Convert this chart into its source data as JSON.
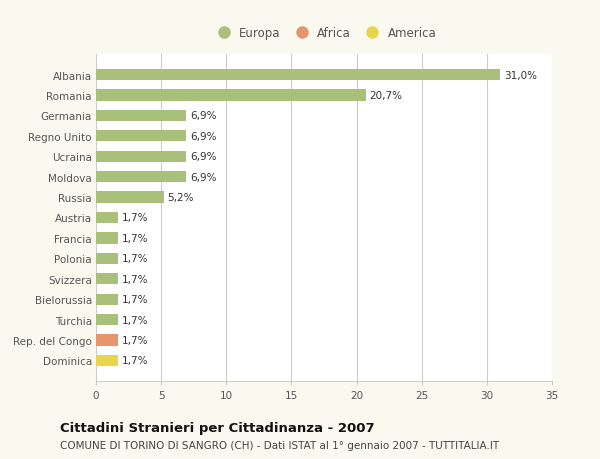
{
  "categories": [
    "Dominica",
    "Rep. del Congo",
    "Turchia",
    "Bielorussia",
    "Svizzera",
    "Polonia",
    "Francia",
    "Austria",
    "Russia",
    "Moldova",
    "Ucraina",
    "Regno Unito",
    "Germania",
    "Romania",
    "Albania"
  ],
  "values": [
    1.7,
    1.7,
    1.7,
    1.7,
    1.7,
    1.7,
    1.7,
    1.7,
    5.2,
    6.9,
    6.9,
    6.9,
    6.9,
    20.7,
    31.0
  ],
  "colors": [
    "#e8d44d",
    "#e8956d",
    "#a8c07a",
    "#a8c07a",
    "#a8c07a",
    "#a8c07a",
    "#a8c07a",
    "#a8c07a",
    "#a8c07a",
    "#a8c07a",
    "#a8c07a",
    "#a8c07a",
    "#a8c07a",
    "#a8c07a",
    "#a8c07a"
  ],
  "labels": [
    "1,7%",
    "1,7%",
    "1,7%",
    "1,7%",
    "1,7%",
    "1,7%",
    "1,7%",
    "1,7%",
    "5,2%",
    "6,9%",
    "6,9%",
    "6,9%",
    "6,9%",
    "20,7%",
    "31,0%"
  ],
  "legend_entries": [
    {
      "label": "Europa",
      "color": "#a8c07a"
    },
    {
      "label": "Africa",
      "color": "#e8956d"
    },
    {
      "label": "America",
      "color": "#e8d44d"
    }
  ],
  "xlim": [
    0,
    35
  ],
  "xticks": [
    0,
    5,
    10,
    15,
    20,
    25,
    30,
    35
  ],
  "title": "Cittadini Stranieri per Cittadinanza - 2007",
  "subtitle": "COMUNE DI TORINO DI SANGRO (CH) - Dati ISTAT al 1° gennaio 2007 - TUTTITALIA.IT",
  "background_color": "#f9f9f0",
  "bar_background": "#ffffff",
  "grid_color": "#cccccc",
  "title_fontsize": 9.5,
  "subtitle_fontsize": 7.5,
  "label_fontsize": 7.5,
  "tick_fontsize": 7.5,
  "legend_fontsize": 8.5,
  "bar_height": 0.55
}
